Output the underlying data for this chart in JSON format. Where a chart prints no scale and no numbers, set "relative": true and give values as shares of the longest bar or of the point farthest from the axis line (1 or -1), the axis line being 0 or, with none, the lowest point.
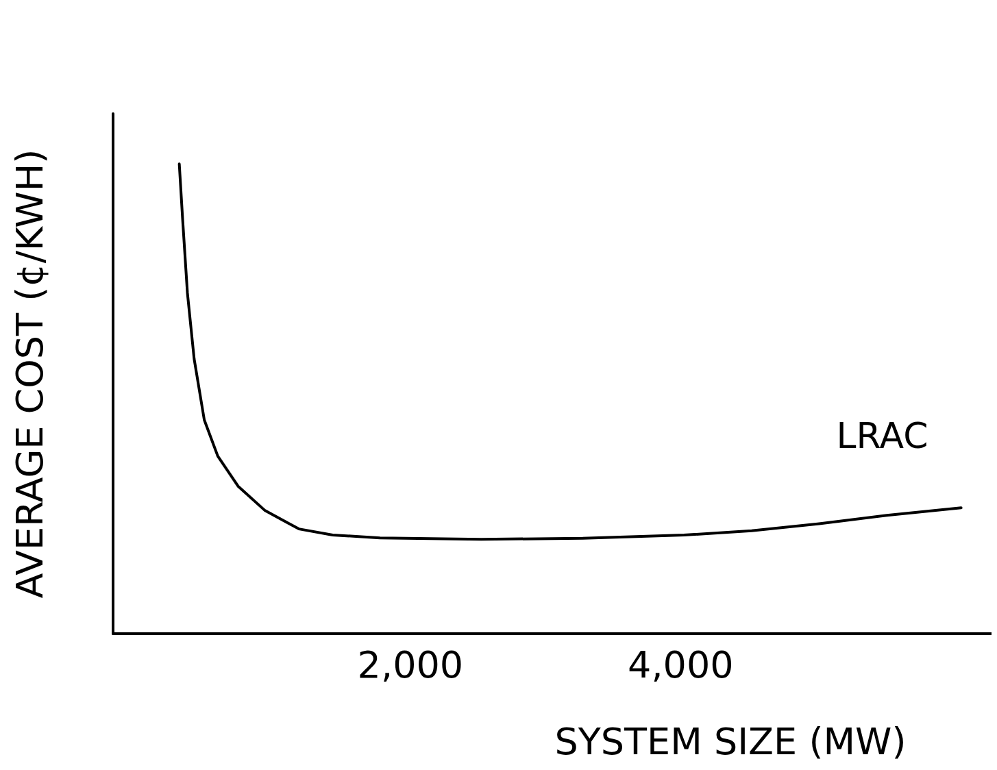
{
  "chart_data": {
    "type": "line",
    "xlabel": "SYSTEM SIZE (MW)",
    "ylabel": "AVERAGE COST (¢/KWH)",
    "relative": true,
    "xlim": [
      -200,
      6300
    ],
    "xticks": [
      {
        "value": 2000,
        "label": "2,000"
      },
      {
        "value": 4000,
        "label": "4,000"
      }
    ],
    "grid": false,
    "legend": false,
    "marker": "none",
    "line_style": "solid",
    "series": [
      {
        "name": "LRAC",
        "color": "#000000",
        "x": [
          290,
          315,
          350,
          400,
          475,
          575,
          725,
          925,
          1175,
          1425,
          1775,
          2525,
          3275,
          4025,
          4525,
          5025,
          5525,
          6075
        ],
        "values": [
          1,
          0.881,
          0.726,
          0.585,
          0.455,
          0.378,
          0.314,
          0.262,
          0.223,
          0.21,
          0.204,
          0.201,
          0.203,
          0.21,
          0.219,
          0.234,
          0.252,
          0.268
        ]
      }
    ]
  }
}
